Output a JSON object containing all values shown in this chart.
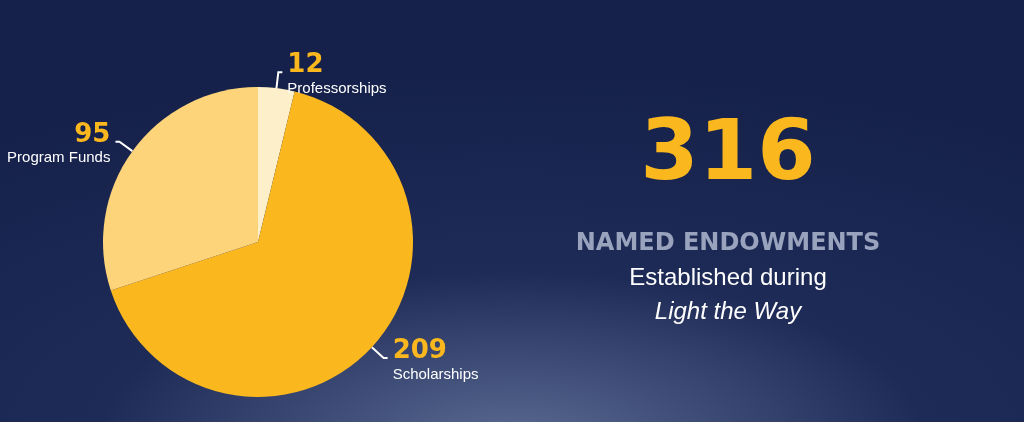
{
  "chart_data": {
    "type": "pie",
    "categories": [
      "Professorships",
      "Scholarships",
      "Program Funds"
    ],
    "values": [
      12,
      209,
      95
    ],
    "colors": [
      "#fdefc9",
      "#fbb81e",
      "#fdd47a"
    ],
    "data_labels": true,
    "legend": false,
    "annotations": [
      "316",
      "NAMED ENDOWMENTS",
      "Established during",
      "Light the Way"
    ]
  }
}
